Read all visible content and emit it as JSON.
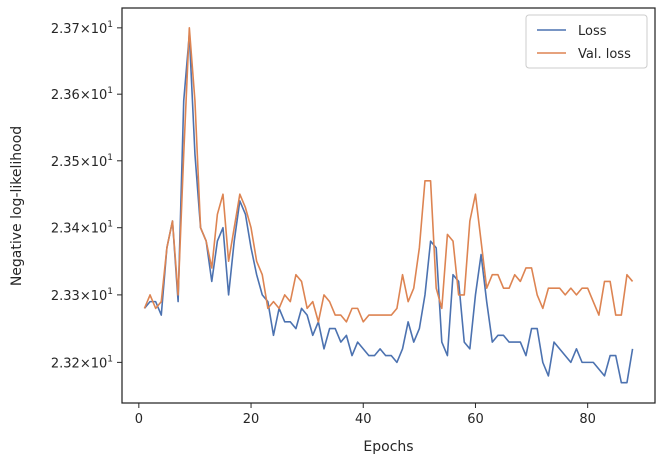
{
  "chart_data": {
    "type": "line",
    "xlabel": "Epochs",
    "ylabel": "Negative log-likelihood",
    "xlim": [
      -3,
      92
    ],
    "ylim": [
      23.14,
      23.73
    ],
    "y_scale": "log",
    "grid": false,
    "legend_position": "top-right",
    "x_ticks": [
      {
        "value": 0,
        "label": "0"
      },
      {
        "value": 20,
        "label": "20"
      },
      {
        "value": 40,
        "label": "40"
      },
      {
        "value": 60,
        "label": "60"
      },
      {
        "value": 80,
        "label": "80"
      }
    ],
    "y_ticks": [
      {
        "value": 23.2,
        "mantissa": "2.32",
        "exp": "1"
      },
      {
        "value": 23.3,
        "mantissa": "2.33",
        "exp": "1"
      },
      {
        "value": 23.4,
        "mantissa": "2.34",
        "exp": "1"
      },
      {
        "value": 23.5,
        "mantissa": "2.35",
        "exp": "1"
      },
      {
        "value": 23.6,
        "mantissa": "2.36",
        "exp": "1"
      },
      {
        "value": 23.7,
        "mantissa": "2.37",
        "exp": "1"
      }
    ],
    "series": [
      {
        "name": "Loss",
        "color": "#4c72b0",
        "x": [
          1,
          2,
          3,
          4,
          5,
          6,
          7,
          8,
          9,
          10,
          11,
          12,
          13,
          14,
          15,
          16,
          17,
          18,
          19,
          20,
          21,
          22,
          23,
          24,
          25,
          26,
          27,
          28,
          29,
          30,
          31,
          32,
          33,
          34,
          35,
          36,
          37,
          38,
          39,
          40,
          41,
          42,
          43,
          44,
          45,
          46,
          47,
          48,
          49,
          50,
          51,
          52,
          53,
          54,
          55,
          56,
          57,
          58,
          59,
          60,
          61,
          62,
          63,
          64,
          65,
          66,
          67,
          68,
          69,
          70,
          71,
          72,
          73,
          74,
          75,
          76,
          77,
          78,
          79,
          80,
          81,
          82,
          83,
          84,
          85,
          86,
          87,
          88
        ],
        "values": [
          23.28,
          23.29,
          23.29,
          23.27,
          23.37,
          23.41,
          23.29,
          23.59,
          23.69,
          23.51,
          23.4,
          23.38,
          23.32,
          23.38,
          23.4,
          23.3,
          23.38,
          23.44,
          23.42,
          23.37,
          23.33,
          23.3,
          23.29,
          23.24,
          23.28,
          23.26,
          23.26,
          23.25,
          23.28,
          23.27,
          23.24,
          23.26,
          23.22,
          23.25,
          23.25,
          23.23,
          23.24,
          23.21,
          23.23,
          23.22,
          23.21,
          23.21,
          23.22,
          23.21,
          23.21,
          23.2,
          23.22,
          23.26,
          23.23,
          23.25,
          23.3,
          23.38,
          23.37,
          23.23,
          23.21,
          23.33,
          23.32,
          23.23,
          23.22,
          23.3,
          23.36,
          23.29,
          23.23,
          23.24,
          23.24,
          23.23,
          23.23,
          23.23,
          23.21,
          23.25,
          23.25,
          23.2,
          23.18,
          23.23,
          23.22,
          23.21,
          23.2,
          23.22,
          23.2,
          23.2,
          23.2,
          23.19,
          23.18,
          23.21,
          23.21,
          23.17,
          23.17,
          23.22
        ]
      },
      {
        "name": "Val. loss",
        "color": "#dd8452",
        "x": [
          1,
          2,
          3,
          4,
          5,
          6,
          7,
          8,
          9,
          10,
          11,
          12,
          13,
          14,
          15,
          16,
          17,
          18,
          19,
          20,
          21,
          22,
          23,
          24,
          25,
          26,
          27,
          28,
          29,
          30,
          31,
          32,
          33,
          34,
          35,
          36,
          37,
          38,
          39,
          40,
          41,
          42,
          43,
          44,
          45,
          46,
          47,
          48,
          49,
          50,
          51,
          52,
          53,
          54,
          55,
          56,
          57,
          58,
          59,
          60,
          61,
          62,
          63,
          64,
          65,
          66,
          67,
          68,
          69,
          70,
          71,
          72,
          73,
          74,
          75,
          76,
          77,
          78,
          79,
          80,
          81,
          82,
          83,
          84,
          85,
          86,
          87,
          88
        ],
        "values": [
          23.28,
          23.3,
          23.28,
          23.29,
          23.37,
          23.41,
          23.3,
          23.51,
          23.7,
          23.59,
          23.4,
          23.38,
          23.34,
          23.42,
          23.45,
          23.35,
          23.4,
          23.45,
          23.43,
          23.4,
          23.35,
          23.33,
          23.28,
          23.29,
          23.28,
          23.3,
          23.29,
          23.33,
          23.32,
          23.28,
          23.29,
          23.26,
          23.3,
          23.29,
          23.27,
          23.27,
          23.26,
          23.28,
          23.28,
          23.26,
          23.27,
          23.27,
          23.27,
          23.27,
          23.27,
          23.28,
          23.33,
          23.29,
          23.31,
          23.37,
          23.47,
          23.47,
          23.31,
          23.28,
          23.39,
          23.38,
          23.3,
          23.3,
          23.41,
          23.45,
          23.38,
          23.31,
          23.33,
          23.33,
          23.31,
          23.31,
          23.33,
          23.32,
          23.34,
          23.34,
          23.3,
          23.28,
          23.31,
          23.31,
          23.31,
          23.3,
          23.31,
          23.3,
          23.31,
          23.31,
          23.29,
          23.27,
          23.32,
          23.32,
          23.27,
          23.27,
          23.33,
          23.32
        ]
      }
    ]
  }
}
